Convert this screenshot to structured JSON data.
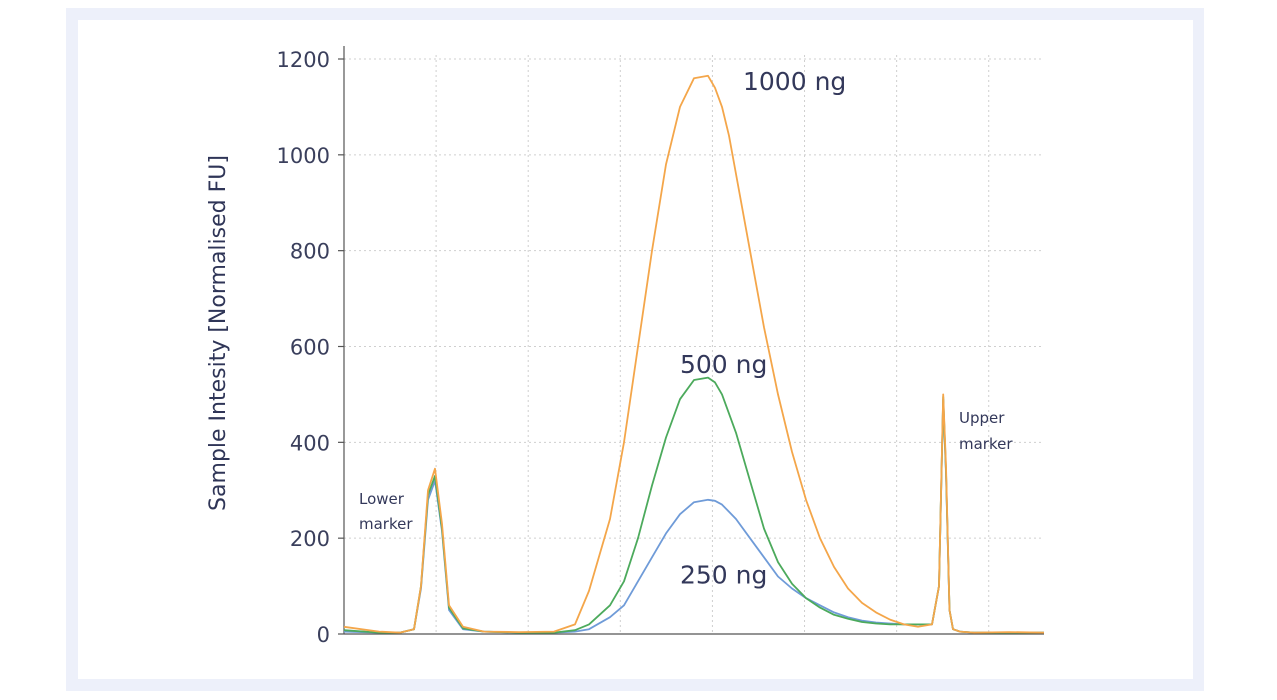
{
  "chart_data": {
    "type": "line",
    "ylabel": "Sample Intesity [Normalised FU]",
    "xlabel": "",
    "ylim": [
      0,
      1200
    ],
    "xlim": [
      0,
      100
    ],
    "y_ticks": [
      0,
      200,
      400,
      600,
      800,
      1000,
      1200
    ],
    "grid": "dotted, on",
    "colors": {
      "1000 ng": "#f4a64a",
      "500 ng": "#4caa5c",
      "250 ng": "#6f9bd8"
    },
    "series": [
      {
        "name": "1000 ng",
        "x": [
          0,
          5,
          8,
          10,
          11,
          12,
          13,
          14,
          15,
          17,
          20,
          25,
          30,
          33,
          35,
          38,
          40,
          42,
          44,
          46,
          48,
          50,
          52,
          53,
          54,
          55,
          56,
          58,
          60,
          62,
          64,
          66,
          68,
          70,
          72,
          74,
          76,
          78,
          80,
          82,
          84,
          85,
          85.6,
          86,
          86.5,
          87,
          88,
          90,
          95,
          100
        ],
        "values": [
          15,
          5,
          3,
          10,
          100,
          300,
          345,
          230,
          60,
          15,
          5,
          4,
          5,
          20,
          90,
          240,
          400,
          600,
          800,
          980,
          1100,
          1160,
          1165,
          1140,
          1100,
          1040,
          960,
          800,
          640,
          500,
          380,
          280,
          200,
          140,
          95,
          65,
          45,
          30,
          20,
          15,
          20,
          100,
          500,
          350,
          50,
          10,
          5,
          3,
          4,
          3
        ]
      },
      {
        "name": "500 ng",
        "x": [
          0,
          5,
          8,
          10,
          11,
          12,
          13,
          14,
          15,
          17,
          20,
          25,
          30,
          33,
          35,
          38,
          40,
          42,
          44,
          46,
          48,
          50,
          52,
          53,
          54,
          55,
          56,
          58,
          60,
          62,
          64,
          66,
          68,
          70,
          72,
          74,
          76,
          78,
          80,
          82,
          84,
          85,
          85.6,
          86,
          86.5,
          87,
          88,
          90,
          95,
          100
        ],
        "values": [
          8,
          3,
          3,
          10,
          100,
          290,
          330,
          220,
          55,
          12,
          5,
          3,
          3,
          8,
          20,
          60,
          110,
          200,
          310,
          410,
          490,
          530,
          535,
          525,
          500,
          460,
          420,
          320,
          220,
          150,
          105,
          75,
          55,
          40,
          32,
          25,
          22,
          20,
          20,
          20,
          20,
          100,
          495,
          340,
          50,
          10,
          5,
          3,
          3,
          3
        ]
      },
      {
        "name": "250 ng",
        "x": [
          0,
          5,
          8,
          10,
          11,
          12,
          13,
          14,
          15,
          17,
          20,
          25,
          30,
          33,
          35,
          38,
          40,
          42,
          44,
          46,
          48,
          50,
          52,
          53,
          54,
          55,
          56,
          58,
          60,
          62,
          64,
          66,
          68,
          70,
          72,
          74,
          76,
          78,
          80,
          82,
          84,
          85,
          85.6,
          86,
          86.5,
          87,
          88,
          90,
          95,
          100
        ],
        "values": [
          5,
          3,
          3,
          10,
          95,
          280,
          320,
          215,
          50,
          10,
          5,
          3,
          3,
          5,
          10,
          35,
          60,
          110,
          160,
          210,
          250,
          275,
          280,
          278,
          270,
          255,
          240,
          200,
          160,
          120,
          95,
          75,
          60,
          45,
          35,
          28,
          24,
          22,
          20,
          20,
          20,
          100,
          490,
          335,
          50,
          10,
          5,
          3,
          3,
          3
        ]
      }
    ],
    "annotations": [
      {
        "text": "1000 ng",
        "x": 57,
        "y": 1135
      },
      {
        "text": "500 ng",
        "x": 48,
        "y": 545
      },
      {
        "text": "250 ng",
        "x": 48,
        "y": 105
      }
    ],
    "marker_labels": {
      "lower": [
        "Lower",
        "marker"
      ],
      "upper": [
        "Upper",
        "marker"
      ]
    }
  }
}
